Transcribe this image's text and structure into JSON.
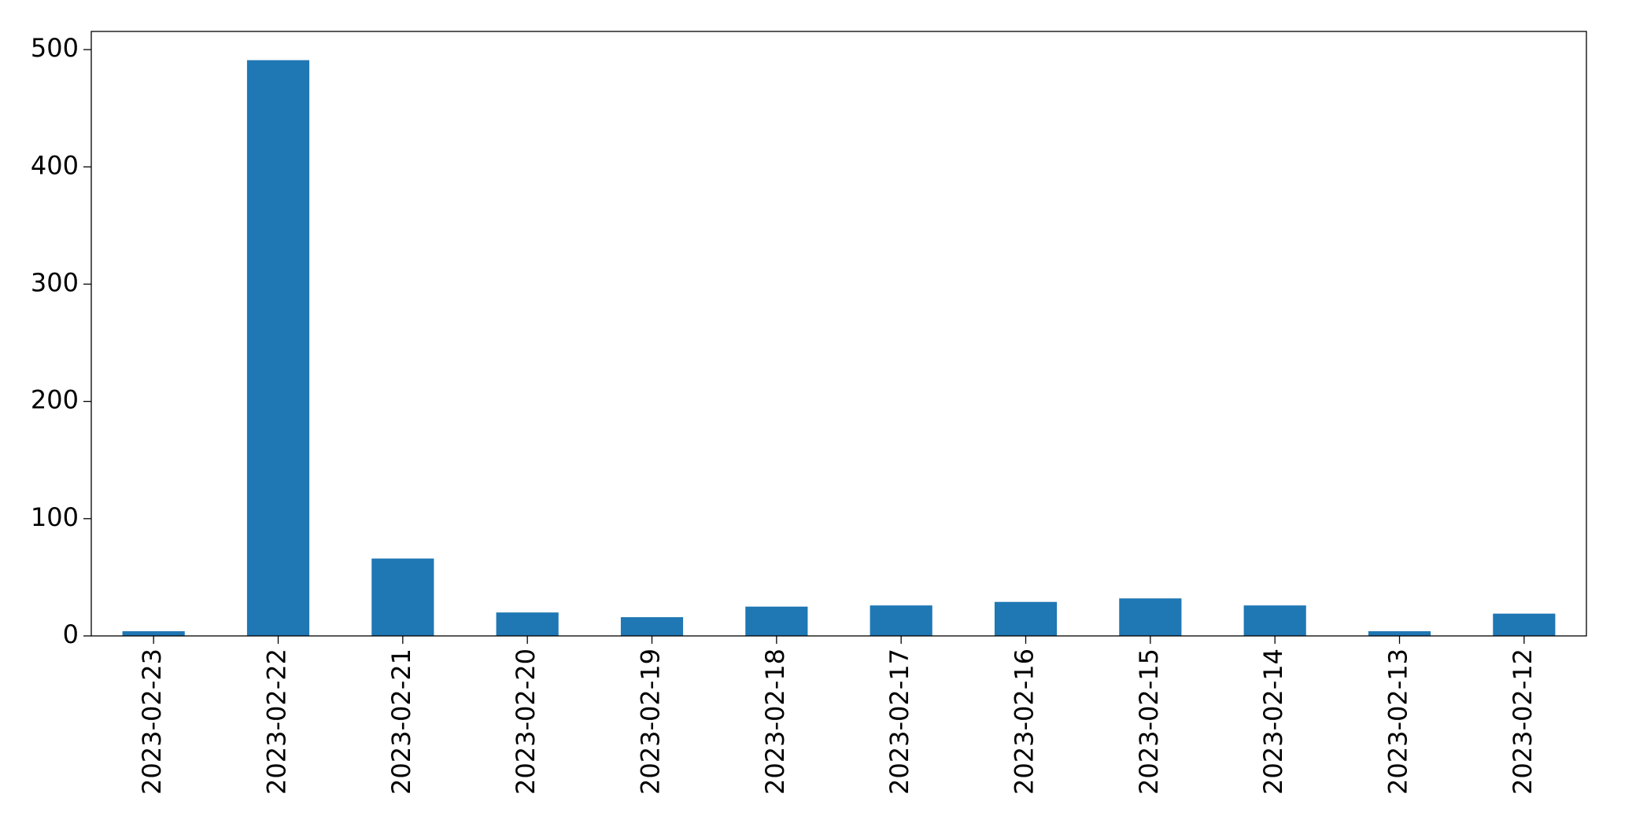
{
  "chart_data": {
    "type": "bar",
    "categories": [
      "2023-02-23",
      "2023-02-22",
      "2023-02-21",
      "2023-02-20",
      "2023-02-19",
      "2023-02-18",
      "2023-02-17",
      "2023-02-16",
      "2023-02-15",
      "2023-02-14",
      "2023-02-13",
      "2023-02-12"
    ],
    "values": [
      4,
      491,
      66,
      20,
      16,
      25,
      26,
      29,
      32,
      26,
      4,
      19
    ],
    "color": "#1f77b4",
    "ylim": [
      0,
      515.5
    ],
    "yticks": [
      0,
      100,
      200,
      300,
      400,
      500
    ],
    "grid": false
  }
}
